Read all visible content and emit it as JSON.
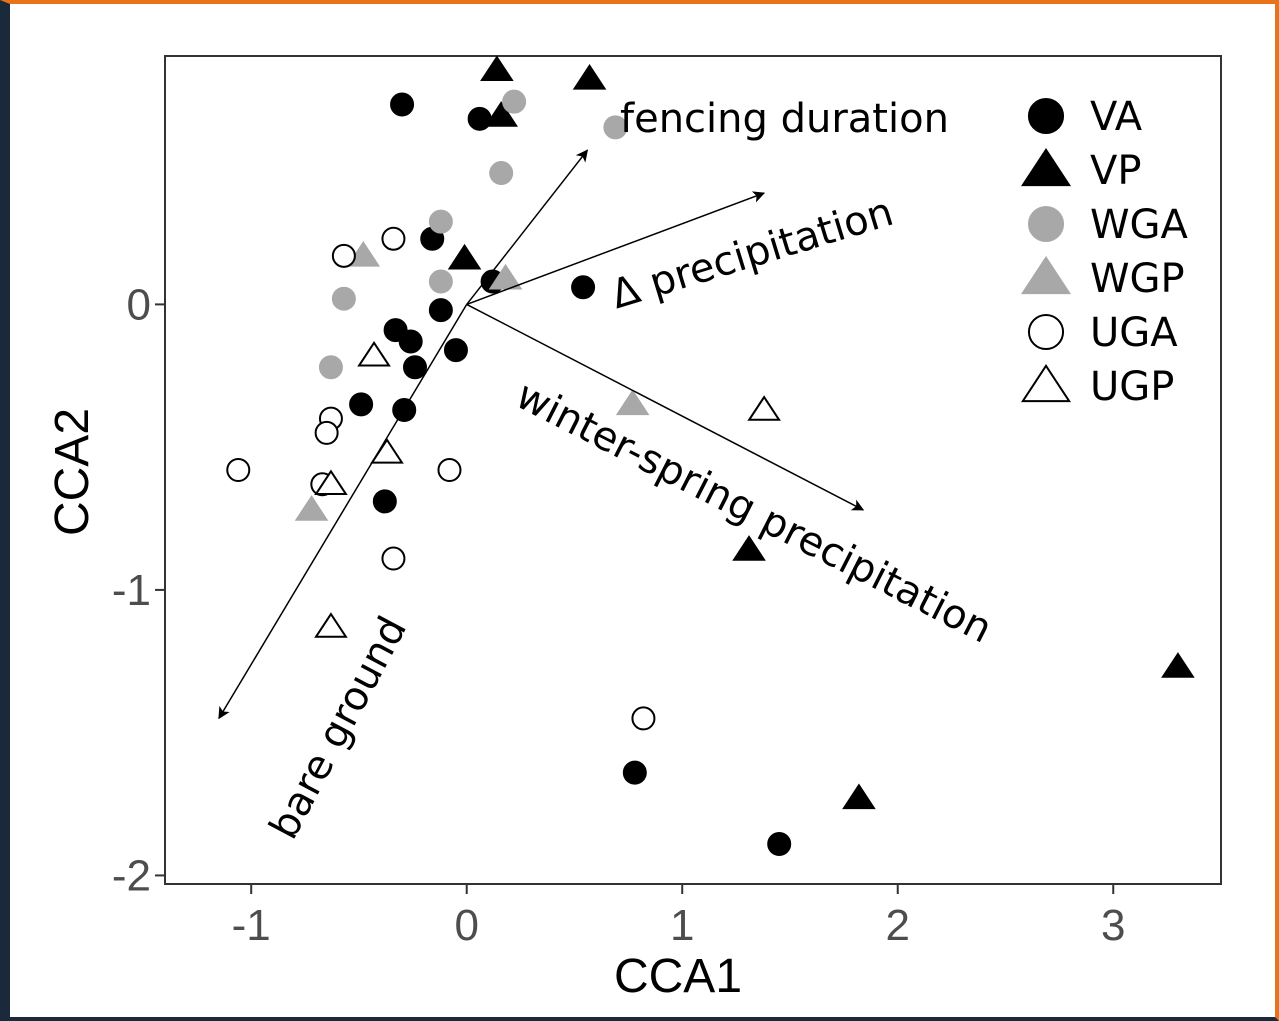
{
  "chart_data": {
    "type": "scatter",
    "title": "",
    "xlabel": "CCA1",
    "ylabel": "CCA2",
    "xlim": [
      -1.4,
      3.5
    ],
    "ylim": [
      -2.03,
      0.87
    ],
    "x_ticks": [
      -1,
      0,
      1,
      2,
      3
    ],
    "y_ticks": [
      0,
      -1,
      -2
    ],
    "x_tick_labels": [
      "-1",
      "0",
      "1",
      "2",
      "3"
    ],
    "y_tick_labels": [
      "0",
      "-1",
      "-2"
    ],
    "grid": false,
    "legend_position": "top-right",
    "series": [
      {
        "name": "VA",
        "marker": "circle",
        "fill": "#000000",
        "stroke": "#000000",
        "points": [
          [
            -0.3,
            0.7
          ],
          [
            0.06,
            0.65
          ],
          [
            -0.16,
            0.23
          ],
          [
            0.12,
            0.08
          ],
          [
            0.54,
            0.06
          ],
          [
            -0.12,
            -0.02
          ],
          [
            -0.33,
            -0.09
          ],
          [
            -0.26,
            -0.13
          ],
          [
            -0.05,
            -0.16
          ],
          [
            -0.24,
            -0.22
          ],
          [
            -0.49,
            -0.35
          ],
          [
            -0.29,
            -0.37
          ],
          [
            -0.38,
            -0.69
          ],
          [
            0.78,
            -1.64
          ],
          [
            1.45,
            -1.89
          ]
        ]
      },
      {
        "name": "VP",
        "marker": "triangle",
        "fill": "#000000",
        "stroke": "#000000",
        "points": [
          [
            0.14,
            0.82
          ],
          [
            0.57,
            0.79
          ],
          [
            0.16,
            0.66
          ],
          [
            -0.01,
            0.16
          ],
          [
            1.31,
            -0.86
          ],
          [
            3.3,
            -1.27
          ],
          [
            1.82,
            -1.73
          ]
        ]
      },
      {
        "name": "WGA",
        "marker": "circle",
        "fill": "#a8a8a8",
        "stroke": "#a8a8a8",
        "points": [
          [
            0.22,
            0.71
          ],
          [
            0.69,
            0.62
          ],
          [
            0.16,
            0.46
          ],
          [
            -0.12,
            0.29
          ],
          [
            -0.12,
            0.08
          ],
          [
            -0.57,
            0.02
          ],
          [
            -0.63,
            -0.22
          ]
        ]
      },
      {
        "name": "WGP",
        "marker": "triangle",
        "fill": "#a8a8a8",
        "stroke": "#a8a8a8",
        "points": [
          [
            -0.48,
            0.17
          ],
          [
            0.18,
            0.09
          ],
          [
            0.77,
            -0.35
          ],
          [
            -0.72,
            -0.72
          ]
        ]
      },
      {
        "name": "UGA",
        "marker": "circle",
        "fill": "#ffffff",
        "stroke": "#000000",
        "points": [
          [
            -0.34,
            0.23
          ],
          [
            -0.57,
            0.17
          ],
          [
            -0.63,
            -0.4
          ],
          [
            -0.65,
            -0.45
          ],
          [
            -1.06,
            -0.58
          ],
          [
            -0.08,
            -0.58
          ],
          [
            -0.67,
            -0.63
          ],
          [
            -0.34,
            -0.89
          ],
          [
            0.82,
            -1.45
          ]
        ]
      },
      {
        "name": "UGP",
        "marker": "triangle",
        "fill": "#ffffff",
        "stroke": "#000000",
        "points": [
          [
            -0.43,
            -0.18
          ],
          [
            1.38,
            -0.37
          ],
          [
            -0.37,
            -0.52
          ],
          [
            -0.63,
            -0.63
          ],
          [
            -0.63,
            -1.13
          ]
        ]
      }
    ],
    "vectors": [
      {
        "label": "fencing duration",
        "x": 0.56,
        "y": 0.54
      },
      {
        "label": "Δ precipitation",
        "x": 1.38,
        "y": 0.39
      },
      {
        "label": "winter-spring precipitation",
        "x": 1.84,
        "y": -0.72
      },
      {
        "label": "bare ground",
        "x": -1.15,
        "y": -1.45
      }
    ]
  }
}
